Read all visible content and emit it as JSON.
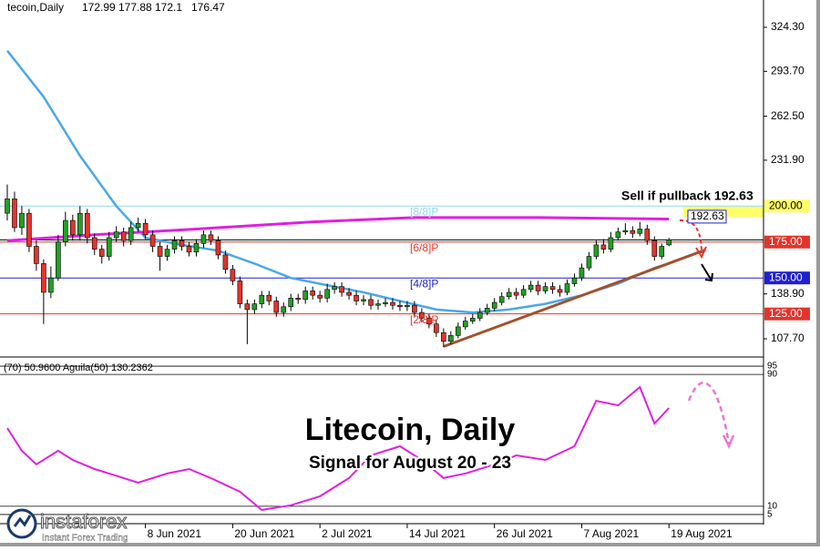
{
  "chart_data": {
    "type": "candlestick",
    "symbol": "tecoin,Daily",
    "title": "Litecoin, Daily",
    "subtitle": "Signal for August 20 - 23",
    "brand": "instaforex",
    "brand_tagline": "Instant Forex Trading",
    "x": [
      "2021-05-20",
      "2021-05-21",
      "2021-05-22",
      "2021-05-23",
      "2021-05-24",
      "2021-05-25",
      "2021-05-26",
      "2021-05-27",
      "2021-05-28",
      "2021-05-29",
      "2021-05-30",
      "2021-05-31",
      "2021-06-01",
      "2021-06-02",
      "2021-06-03",
      "2021-06-04",
      "2021-06-05",
      "2021-06-06",
      "2021-06-07",
      "2021-06-08",
      "2021-06-09",
      "2021-06-10",
      "2021-06-11",
      "2021-06-12",
      "2021-06-13",
      "2021-06-14",
      "2021-06-15",
      "2021-06-16",
      "2021-06-17",
      "2021-06-18",
      "2021-06-19",
      "2021-06-20",
      "2021-06-21",
      "2021-06-22",
      "2021-06-23",
      "2021-06-24",
      "2021-06-25",
      "2021-06-26",
      "2021-06-27",
      "2021-06-28",
      "2021-06-29",
      "2021-06-30",
      "2021-07-01",
      "2021-07-02",
      "2021-07-03",
      "2021-07-04",
      "2021-07-05",
      "2021-07-06",
      "2021-07-07",
      "2021-07-08",
      "2021-07-09",
      "2021-07-10",
      "2021-07-11",
      "2021-07-12",
      "2021-07-13",
      "2021-07-14",
      "2021-07-15",
      "2021-07-16",
      "2021-07-17",
      "2021-07-18",
      "2021-07-19",
      "2021-07-20",
      "2021-07-21",
      "2021-07-22",
      "2021-07-23",
      "2021-07-24",
      "2021-07-25",
      "2021-07-26",
      "2021-07-27",
      "2021-07-28",
      "2021-07-29",
      "2021-07-30",
      "2021-07-31",
      "2021-08-01",
      "2021-08-02",
      "2021-08-03",
      "2021-08-04",
      "2021-08-05",
      "2021-08-06",
      "2021-08-07",
      "2021-08-08",
      "2021-08-09",
      "2021-08-10",
      "2021-08-11",
      "2021-08-12",
      "2021-08-13",
      "2021-08-14",
      "2021-08-15",
      "2021-08-16",
      "2021-08-17",
      "2021-08-18",
      "2021-08-19"
    ],
    "open": [
      195,
      205,
      185,
      195,
      172,
      160,
      140,
      150,
      175,
      190,
      180,
      195,
      178,
      170,
      165,
      178,
      182,
      176,
      185,
      188,
      180,
      172,
      165,
      170,
      176,
      172,
      168,
      174,
      180,
      176,
      166,
      156,
      148,
      132,
      128,
      132,
      138,
      134,
      126,
      130,
      136,
      135,
      141,
      138,
      136,
      142,
      144,
      140,
      138,
      134,
      135,
      131,
      132,
      133,
      131,
      130,
      131,
      126,
      122,
      118,
      112,
      106,
      110,
      116,
      120,
      122,
      126,
      129,
      133,
      137,
      140,
      138,
      142,
      145,
      141,
      144,
      142,
      140,
      146,
      150,
      157,
      165,
      173,
      170,
      178,
      182,
      183,
      181,
      184,
      176,
      165,
      172.99
    ],
    "high": [
      215,
      210,
      200,
      198,
      176,
      163,
      158,
      180,
      196,
      194,
      200,
      198,
      181,
      173,
      182,
      186,
      185,
      189,
      192,
      191,
      183,
      175,
      173,
      179,
      179,
      175,
      177,
      183,
      183,
      179,
      169,
      159,
      151,
      135,
      135,
      141,
      141,
      137,
      133,
      139,
      139,
      144,
      144,
      141,
      146,
      147,
      147,
      143,
      141,
      138,
      138,
      135,
      136,
      136,
      134,
      134,
      134,
      129,
      125,
      121,
      115,
      113,
      119,
      123,
      125,
      129,
      132,
      136,
      140,
      143,
      143,
      145,
      148,
      148,
      147,
      147,
      145,
      149,
      153,
      160,
      168,
      176,
      177,
      182,
      185,
      188,
      186,
      189,
      187,
      179,
      174,
      177.88
    ],
    "low": [
      190,
      182,
      180,
      168,
      155,
      118,
      136,
      148,
      172,
      176,
      176,
      174,
      166,
      160,
      162,
      175,
      172,
      173,
      182,
      177,
      168,
      155,
      162,
      167,
      169,
      165,
      165,
      171,
      173,
      163,
      153,
      145,
      129,
      104,
      125,
      129,
      131,
      123,
      123,
      127,
      132,
      132,
      135,
      133,
      133,
      139,
      137,
      135,
      131,
      131,
      128,
      128,
      130,
      128,
      127,
      127,
      123,
      119,
      115,
      109,
      102,
      104,
      108,
      114,
      118,
      120,
      124,
      127,
      131,
      135,
      135,
      136,
      140,
      138,
      139,
      139,
      137,
      138,
      144,
      148,
      155,
      163,
      167,
      168,
      176,
      180,
      178,
      179,
      173,
      162,
      163,
      172.1
    ],
    "close": [
      205,
      185,
      195,
      172,
      160,
      140,
      150,
      175,
      190,
      180,
      195,
      178,
      170,
      165,
      178,
      182,
      176,
      185,
      188,
      180,
      172,
      165,
      170,
      176,
      172,
      168,
      174,
      180,
      176,
      166,
      156,
      148,
      132,
      128,
      132,
      138,
      134,
      126,
      130,
      136,
      135,
      141,
      138,
      136,
      142,
      144,
      140,
      138,
      134,
      135,
      131,
      132,
      133,
      131,
      130,
      131,
      126,
      122,
      118,
      112,
      106,
      110,
      116,
      120,
      122,
      126,
      129,
      133,
      137,
      140,
      138,
      142,
      145,
      141,
      144,
      142,
      140,
      146,
      150,
      157,
      165,
      173,
      170,
      178,
      182,
      183,
      181,
      184,
      176,
      165,
      172,
      176.47
    ],
    "up_color": "#22a022",
    "down_color": "#e3342b",
    "xlim": [
      "2021-05-19",
      "2021-09-01"
    ],
    "xticks": [
      {
        "value": "2021-06-08",
        "label": "8 Jun 2021"
      },
      {
        "value": "2021-06-20",
        "label": "20 Jun 2021"
      },
      {
        "value": "2021-07-02",
        "label": "2 Jul 2021"
      },
      {
        "value": "2021-07-14",
        "label": "14 Jul 2021"
      },
      {
        "value": "2021-07-26",
        "label": "26 Jul 2021"
      },
      {
        "value": "2021-08-07",
        "label": "7 Aug 2021"
      },
      {
        "value": "2021-08-19",
        "label": "19 Aug 2021"
      }
    ],
    "ylim": [
      96.3,
      343.3
    ],
    "yticks": [
      {
        "value": 324.3,
        "label": "324.30"
      },
      {
        "value": 293.7,
        "label": "293.70"
      },
      {
        "value": 262.5,
        "label": "262.50"
      },
      {
        "value": 231.9,
        "label": "231.90"
      },
      {
        "value": 138.9,
        "label": "138.90"
      },
      {
        "value": 107.7,
        "label": "107.70"
      }
    ],
    "levels": [
      {
        "value": 200,
        "label": "200.00",
        "name": "[8/8]P",
        "color": "#8fd8f0",
        "tag_color": "#ffff66"
      },
      {
        "value": 175,
        "label": "175.00",
        "name": "[6/8]P",
        "color": "#e3342b",
        "tag_color": "#e3342b"
      },
      {
        "value": 150,
        "label": "150.00",
        "name": "[4/8]P",
        "color": "#2020d0",
        "tag_color": "#2020d0"
      },
      {
        "value": 125,
        "label": "125.00",
        "name": "[2/8]P",
        "color": "#e3342b",
        "tag_color": "#e3342b"
      }
    ],
    "lines": [
      {
        "color": "#4aa8e8",
        "width": 2.5,
        "x": [
          "2021-05-20",
          "2021-05-25",
          "2021-05-30",
          "2021-06-04",
          "2021-06-08",
          "2021-06-13",
          "2021-06-18",
          "2021-06-23",
          "2021-06-28",
          "2021-07-03",
          "2021-07-08",
          "2021-07-13",
          "2021-07-18",
          "2021-07-23",
          "2021-07-28",
          "2021-08-02",
          "2021-08-07",
          "2021-08-12",
          "2021-08-17",
          "2021-08-19"
        ],
        "values": [
          308,
          276,
          235,
          200,
          178,
          173,
          169,
          160,
          150,
          145,
          140,
          134,
          128,
          126,
          128,
          132,
          138,
          146,
          157,
          160
        ]
      },
      {
        "color": "#e020e0",
        "width": 3,
        "x": [
          "2021-05-20",
          "2021-06-01",
          "2021-06-15",
          "2021-07-01",
          "2021-07-15",
          "2021-08-01",
          "2021-08-19"
        ],
        "values": [
          176,
          180,
          184,
          189,
          192,
          192,
          191
        ]
      },
      {
        "color": "#a0522d",
        "width": 3,
        "x": [
          "2021-07-19",
          "2021-08-24"
        ],
        "values": [
          102.3,
          169.5
        ]
      }
    ],
    "annotation": "Sell if pullback 192.63",
    "target": 192.63,
    "indicator": {
      "label": "(70) 50.9600  Aguila(50) 130.2362",
      "ylim": [
        0,
        100
      ],
      "yticks": [
        95,
        90,
        10,
        5
      ],
      "color": "#e020e0",
      "x": [
        "2021-05-20",
        "2021-05-22",
        "2021-05-24",
        "2021-05-27",
        "2021-05-29",
        "2021-06-01",
        "2021-06-05",
        "2021-06-07",
        "2021-06-11",
        "2021-06-14",
        "2021-06-17",
        "2021-06-21",
        "2021-06-24",
        "2021-06-28",
        "2021-07-02",
        "2021-07-06",
        "2021-07-09",
        "2021-07-13",
        "2021-07-16",
        "2021-07-19",
        "2021-07-22",
        "2021-07-26",
        "2021-07-29",
        "2021-08-02",
        "2021-08-06",
        "2021-08-09",
        "2021-08-12",
        "2021-08-15",
        "2021-08-17",
        "2021-08-19"
      ],
      "values": [
        57.4,
        43.7,
        35.4,
        43.7,
        38.1,
        32.6,
        27.1,
        24.3,
        29.9,
        32.6,
        27.1,
        18.8,
        7.8,
        10.6,
        16.1,
        27.1,
        40.9,
        46.4,
        38.1,
        27.1,
        29.9,
        35.4,
        40.9,
        38.1,
        46.4,
        74,
        71.2,
        82.3,
        60.2,
        69.6
      ]
    }
  }
}
